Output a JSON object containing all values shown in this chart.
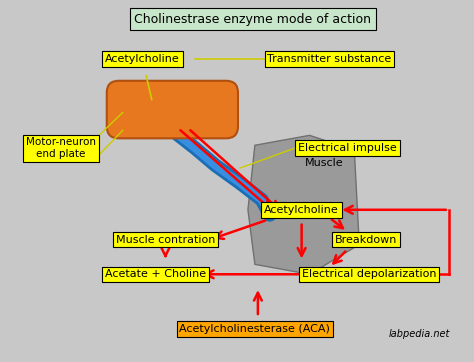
{
  "background_color": "#c8c8c8",
  "title_text": "Cholinestrase enzyme mode of action",
  "title_box_color": "#c8e6c9",
  "yellow_box_color": "#ffff00",
  "orange_box_color": "#ffa500",
  "red_color": "#ff0000",
  "blue_color": "#1a6eb5",
  "blue_light_color": "#4da6ff",
  "orange_capsule_color": "#e87820",
  "muscle_color": "#9a9a9a",
  "muscle_edge_color": "#707070",
  "line_color": "#cccc00",
  "labels": {
    "title": "Cholinestrase enzyme mode of action",
    "acetylcholine_top": "Acetylcholine",
    "transmitter": "Transmitter substance",
    "motor_neuron": "Motor-neuron\nend plate",
    "electrical_impulse": "Electrical impulse",
    "acetylcholine_mid": "Acetylcholine",
    "muscle": "Muscle",
    "muscle_contraction": "Muscle contration",
    "breakdown": "Breakdown",
    "acetate_choline": "Acetate + Choline",
    "electrical_depolarization": "Electrical depolarization",
    "acetylcholinesterase": "Acetylcholinesterase (ACA)",
    "watermark": "labpedia.net"
  }
}
